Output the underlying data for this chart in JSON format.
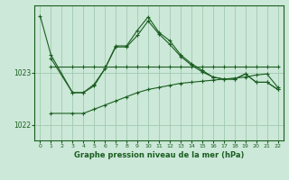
{
  "title": "Graphe pression niveau de la mer (hPa)",
  "bg_color": "#cce8d8",
  "grid_color": "#99c4aa",
  "line_color": "#1a5e20",
  "xlim": [
    -0.5,
    22.5
  ],
  "ylim": [
    1021.7,
    1024.3
  ],
  "yticks": [
    1022,
    1023
  ],
  "xtick_labels": [
    "0",
    "1",
    "2",
    "3",
    "4",
    "5",
    "6",
    "7",
    "8",
    "9",
    "10",
    "11",
    "12",
    "13",
    "14",
    "15",
    "16",
    "17",
    "18",
    "19",
    "20",
    "21",
    "22"
  ],
  "line1_x": [
    0,
    1,
    3,
    4,
    5,
    6,
    7,
    8,
    9,
    10,
    11,
    12,
    13,
    14,
    15,
    16,
    17,
    18,
    19,
    20,
    21,
    22
  ],
  "line1_y": [
    1024.1,
    1023.35,
    1022.62,
    1022.62,
    1022.78,
    1023.08,
    1023.52,
    1023.52,
    1023.82,
    1024.08,
    1023.78,
    1023.62,
    1023.35,
    1023.18,
    1023.05,
    1022.92,
    1022.88,
    1022.88,
    1022.98,
    1022.82,
    1022.82,
    1022.68
  ],
  "line2_x": [
    1,
    3,
    4,
    5,
    6,
    7,
    8,
    9,
    10,
    11,
    12,
    13,
    14,
    15,
    16,
    17,
    18,
    19,
    20,
    21,
    22
  ],
  "line2_y": [
    1023.28,
    1022.62,
    1022.62,
    1022.75,
    1023.08,
    1023.5,
    1023.5,
    1023.72,
    1024.0,
    1023.75,
    1023.55,
    1023.32,
    1023.15,
    1023.02,
    1022.92,
    1022.88,
    1022.88,
    1022.98,
    1022.82,
    1022.82,
    1022.68
  ],
  "line3_x": [
    1,
    3,
    4,
    5,
    6,
    7,
    8,
    9,
    10,
    11,
    12,
    13,
    14,
    15,
    16,
    17,
    18,
    19,
    20,
    21,
    22
  ],
  "line3_y": [
    1023.12,
    1023.12,
    1023.12,
    1023.12,
    1023.12,
    1023.12,
    1023.12,
    1023.12,
    1023.12,
    1023.12,
    1023.12,
    1023.12,
    1023.12,
    1023.12,
    1023.12,
    1023.12,
    1023.12,
    1023.12,
    1023.12,
    1023.12,
    1023.12
  ],
  "line4_x": [
    1,
    3,
    4,
    5,
    6,
    7,
    8,
    9,
    10,
    11,
    12,
    13,
    14,
    15,
    16,
    17,
    18,
    19,
    20,
    21,
    22
  ],
  "line4_y": [
    1022.22,
    1022.22,
    1022.22,
    1022.3,
    1022.38,
    1022.46,
    1022.54,
    1022.62,
    1022.68,
    1022.72,
    1022.76,
    1022.8,
    1022.82,
    1022.84,
    1022.86,
    1022.88,
    1022.9,
    1022.92,
    1022.96,
    1022.98,
    1022.72
  ]
}
